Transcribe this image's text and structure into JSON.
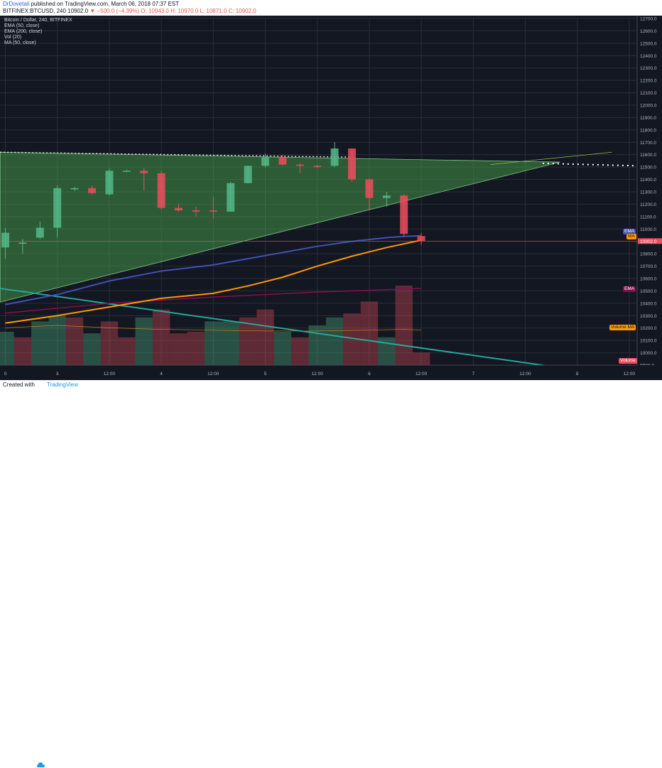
{
  "header": {
    "author": "DrDovetail",
    "published": "published on TradingView.com, March 06, 2018 07:37 EST",
    "symbol_line": "BITFINEX:BTCUSD, 240",
    "last": "10902.0",
    "change": "▼ −500.0 (−4.39%)",
    "ohlc": "O: 10943.0 H: 10970.0 L: 10871.0 C: 10902.0"
  },
  "indicators": [
    "Bitcoin / Dollar, 240, BITFINEX",
    "EMA (50, close)",
    "EMA (200, close)",
    "Vol (20)",
    "MA (50, close)"
  ],
  "footer": {
    "created_with": "Created with",
    "brand": "TradingView"
  },
  "labels": {
    "ema1": "EMA",
    "ma": "MA",
    "ema2": "EMA",
    "volume_ma": "Volume MA",
    "volume": "Volume"
  },
  "colors": {
    "background": "#131722",
    "up": "#53b987",
    "down": "#eb4d5c",
    "ema50": "#3f51b5",
    "ema200": "#880e4f",
    "ma50": "#ff9800",
    "triangle": "#4caf50",
    "trendline": "#26a69a"
  },
  "chart_data": {
    "type": "candlestick",
    "price_axis": {
      "min": 9900,
      "max": 12700,
      "ticks": [
        9900,
        10000,
        10100,
        10200,
        10300,
        10400,
        10500,
        10600,
        10700,
        10800,
        10900,
        11000,
        11100,
        11200,
        11300,
        11400,
        11500,
        11600,
        11700,
        11800,
        11900,
        12000,
        12100,
        12200,
        12300,
        12400,
        12500,
        12600,
        12700
      ]
    },
    "time_axis": {
      "labels": [
        "0",
        "3",
        "12:00",
        "4",
        "12:00",
        "5",
        "12:00",
        "6",
        "12:00",
        "7",
        "12:00",
        "8",
        "12:00"
      ]
    },
    "last_price": 10902.0,
    "candles": [
      {
        "o": 10850,
        "c": 10970,
        "h": 11010,
        "l": 10760
      },
      {
        "o": 10880,
        "c": 10890,
        "h": 10920,
        "l": 10800
      },
      {
        "o": 10930,
        "c": 11010,
        "h": 11060,
        "l": 10920
      },
      {
        "o": 11010,
        "c": 11330,
        "h": 11350,
        "l": 10930
      },
      {
        "o": 11320,
        "c": 11330,
        "h": 11340,
        "l": 11310
      },
      {
        "o": 11330,
        "c": 11290,
        "h": 11350,
        "l": 11280
      },
      {
        "o": 11280,
        "c": 11470,
        "h": 11490,
        "l": 11270
      },
      {
        "o": 11465,
        "c": 11470,
        "h": 11480,
        "l": 11460
      },
      {
        "o": 11470,
        "c": 11450,
        "h": 11490,
        "l": 11310
      },
      {
        "o": 11450,
        "c": 11170,
        "h": 11470,
        "l": 11160
      },
      {
        "o": 11170,
        "c": 11150,
        "h": 11200,
        "l": 11140
      },
      {
        "o": 11150,
        "c": 11140,
        "h": 11180,
        "l": 11100
      },
      {
        "o": 11150,
        "c": 11140,
        "h": 11260,
        "l": 11080
      },
      {
        "o": 11140,
        "c": 11370,
        "h": 11380,
        "l": 11140
      },
      {
        "o": 11370,
        "c": 11510,
        "h": 11510,
        "l": 11370
      },
      {
        "o": 11510,
        "c": 11580,
        "h": 11610,
        "l": 11500
      },
      {
        "o": 11580,
        "c": 11520,
        "h": 11600,
        "l": 11510
      },
      {
        "o": 11520,
        "c": 11510,
        "h": 11530,
        "l": 11450
      },
      {
        "o": 11510,
        "c": 11500,
        "h": 11520,
        "l": 11490
      },
      {
        "o": 11510,
        "c": 11650,
        "h": 11700,
        "l": 11500
      },
      {
        "o": 11650,
        "c": 11400,
        "h": 11650,
        "l": 11380
      },
      {
        "o": 11400,
        "c": 11250,
        "h": 11410,
        "l": 11150
      },
      {
        "o": 11250,
        "c": 11270,
        "h": 11300,
        "l": 11180
      },
      {
        "o": 11270,
        "c": 10960,
        "h": 11280,
        "l": 10940
      },
      {
        "o": 10943,
        "c": 10902,
        "h": 10970,
        "l": 10871
      }
    ],
    "volume_up": [
      true,
      false,
      true,
      true,
      false,
      true,
      false,
      false,
      true,
      false,
      false,
      false,
      true,
      true,
      false,
      false,
      true,
      false,
      true,
      true,
      false,
      false,
      true,
      false,
      false
    ],
    "volume_rel": [
      0.42,
      0.35,
      0.55,
      0.62,
      0.6,
      0.4,
      0.55,
      0.35,
      0.6,
      0.7,
      0.4,
      0.42,
      0.55,
      0.55,
      0.6,
      0.7,
      0.42,
      0.35,
      0.5,
      0.6,
      0.65,
      0.8,
      0.35,
      1.0,
      0.16
    ],
    "ema50": [
      [
        0,
        10390
      ],
      [
        3,
        10470
      ],
      [
        6,
        10580
      ],
      [
        9,
        10660
      ],
      [
        12,
        10710
      ],
      [
        14,
        10760
      ],
      [
        16,
        10810
      ],
      [
        18,
        10860
      ],
      [
        20,
        10900
      ],
      [
        22,
        10930
      ],
      [
        23,
        10940
      ],
      [
        24,
        10945
      ]
    ],
    "ma50": [
      [
        0,
        10240
      ],
      [
        3,
        10300
      ],
      [
        6,
        10370
      ],
      [
        9,
        10440
      ],
      [
        12,
        10480
      ],
      [
        14,
        10540
      ],
      [
        16,
        10610
      ],
      [
        18,
        10700
      ],
      [
        20,
        10780
      ],
      [
        22,
        10850
      ],
      [
        24,
        10910
      ]
    ],
    "ema200": [
      [
        0,
        10320
      ],
      [
        6,
        10400
      ],
      [
        12,
        10450
      ],
      [
        18,
        10490
      ],
      [
        24,
        10520
      ]
    ],
    "triangle": {
      "top_left": [
        -0.3,
        11620
      ],
      "apex": [
        32,
        11540
      ],
      "bottom_left": [
        -0.3,
        10410
      ]
    },
    "descending_trendline": [
      [
        -0.3,
        10520
      ],
      [
        32,
        9880
      ]
    ]
  }
}
